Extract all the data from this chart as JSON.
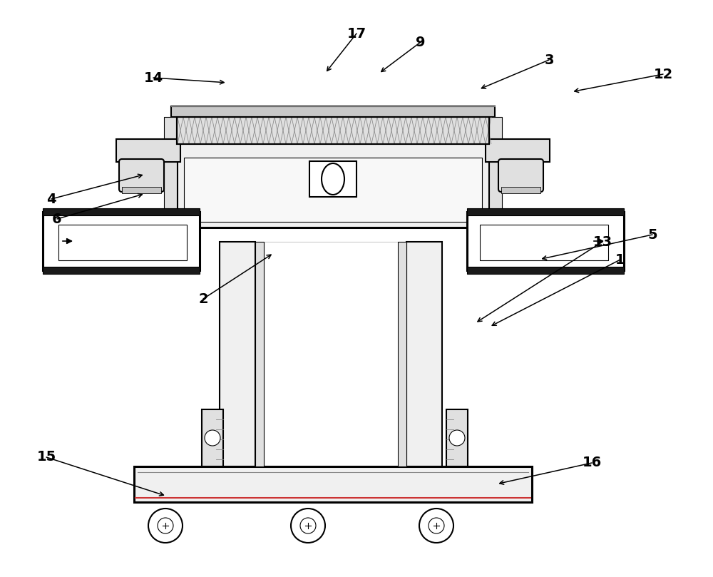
{
  "bg_color": "#ffffff",
  "lc": "#000000",
  "dark": "#222222",
  "gray1": "#f0f0f0",
  "gray2": "#e0e0e0",
  "gray3": "#c8c8c8",
  "gray4": "#a0a0a0",
  "gray5": "#d5d5d5",
  "dark_bar": "#1a1a1a",
  "lw1": 1.5,
  "lw2": 0.8,
  "lw3": 2.2,
  "leaders": [
    [
      "17",
      500,
      762,
      455,
      705
    ],
    [
      "9",
      590,
      750,
      530,
      705
    ],
    [
      "3",
      770,
      725,
      670,
      683
    ],
    [
      "12",
      930,
      705,
      800,
      680
    ],
    [
      "14",
      215,
      700,
      320,
      693
    ],
    [
      "4",
      72,
      530,
      205,
      565
    ],
    [
      "6",
      80,
      502,
      205,
      538
    ],
    [
      "2",
      285,
      390,
      385,
      455
    ],
    [
      "5",
      915,
      480,
      755,
      445
    ],
    [
      "13",
      845,
      470,
      665,
      355
    ],
    [
      "1",
      870,
      445,
      685,
      350
    ],
    [
      "15",
      65,
      168,
      235,
      113
    ],
    [
      "16",
      830,
      160,
      695,
      130
    ]
  ]
}
